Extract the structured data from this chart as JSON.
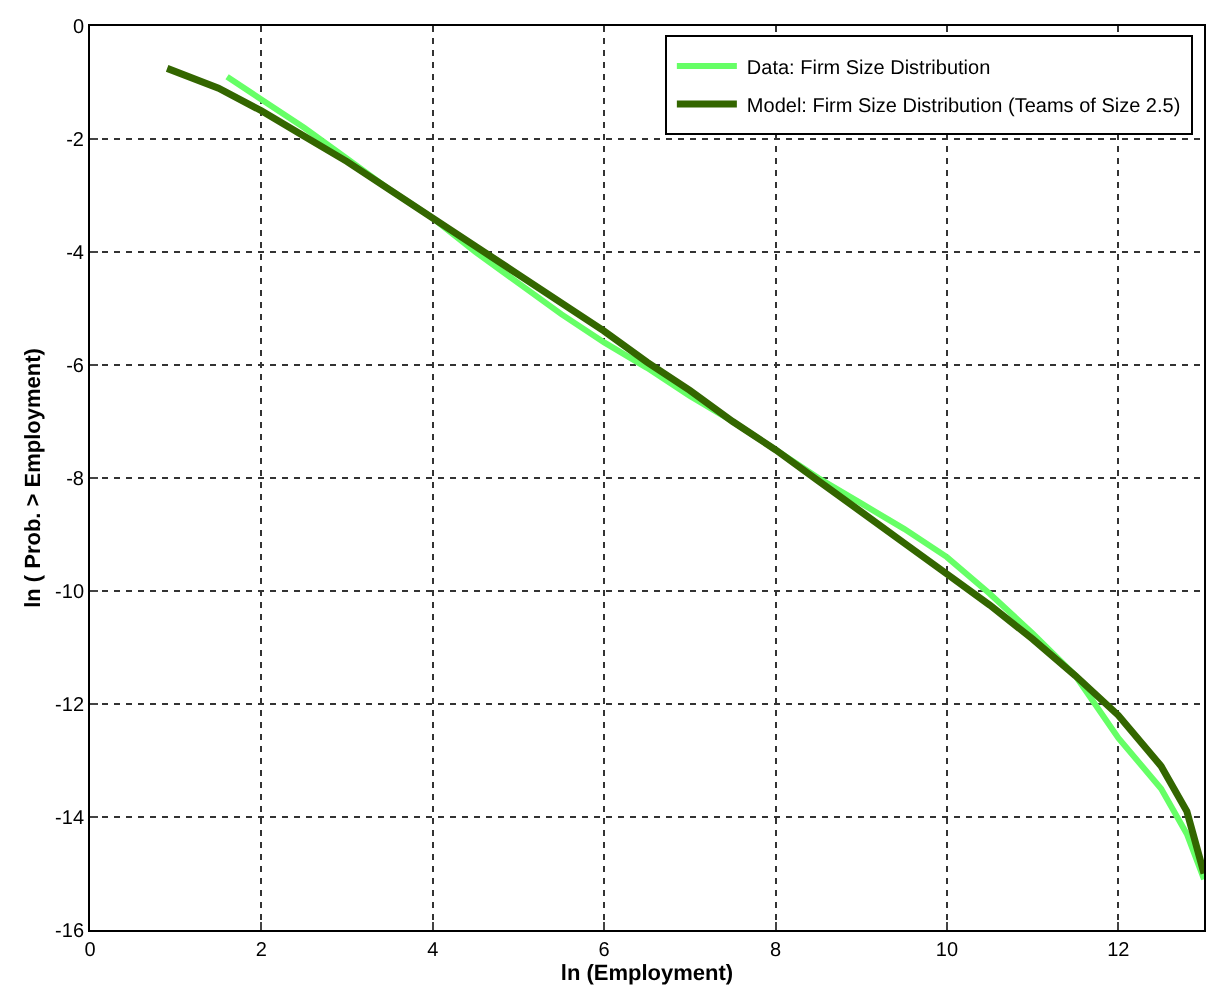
{
  "chart_data": {
    "type": "line",
    "xlabel": "ln (Employment)",
    "ylabel": "ln ( Prob. > Employment)",
    "xlim": [
      0,
      13
    ],
    "ylim": [
      -16,
      0
    ],
    "xticks": [
      0,
      2,
      4,
      6,
      8,
      10,
      12
    ],
    "yticks": [
      -16,
      -14,
      -12,
      -10,
      -8,
      -6,
      -4,
      -2,
      0
    ],
    "grid": true,
    "legend": "top right",
    "series": [
      {
        "name": "Data: Firm Size Distribution",
        "color": "#66ff66",
        "x": [
          1.6,
          2,
          2.5,
          3,
          3.5,
          4,
          4.5,
          5,
          5.5,
          6,
          6.5,
          7,
          7.5,
          8,
          8.5,
          9,
          9.5,
          10,
          10.5,
          11,
          11.5,
          12,
          12.5,
          12.8,
          13
        ],
        "values": [
          -0.9,
          -1.3,
          -1.8,
          -2.35,
          -2.9,
          -3.4,
          -4.0,
          -4.55,
          -5.1,
          -5.6,
          -6.05,
          -6.55,
          -7.0,
          -7.5,
          -8.0,
          -8.45,
          -8.9,
          -9.4,
          -10.05,
          -10.75,
          -11.5,
          -12.6,
          -13.5,
          -14.3,
          -15.1
        ]
      },
      {
        "name": "Model: Firm Size Distribution (Teams of Size 2.5)",
        "color": "#336600",
        "x": [
          0.9,
          1.5,
          2,
          2.5,
          3,
          3.5,
          4,
          4.5,
          5,
          5.5,
          6,
          6.5,
          7,
          7.5,
          8,
          8.5,
          9,
          9.5,
          10,
          10.5,
          11,
          11.5,
          12,
          12.5,
          12.8,
          13
        ],
        "values": [
          -0.75,
          -1.1,
          -1.5,
          -1.95,
          -2.4,
          -2.9,
          -3.4,
          -3.9,
          -4.4,
          -4.9,
          -5.4,
          -5.95,
          -6.45,
          -7.0,
          -7.5,
          -8.05,
          -8.6,
          -9.15,
          -9.7,
          -10.25,
          -10.85,
          -11.5,
          -12.2,
          -13.1,
          -13.9,
          -15.0
        ]
      }
    ]
  }
}
